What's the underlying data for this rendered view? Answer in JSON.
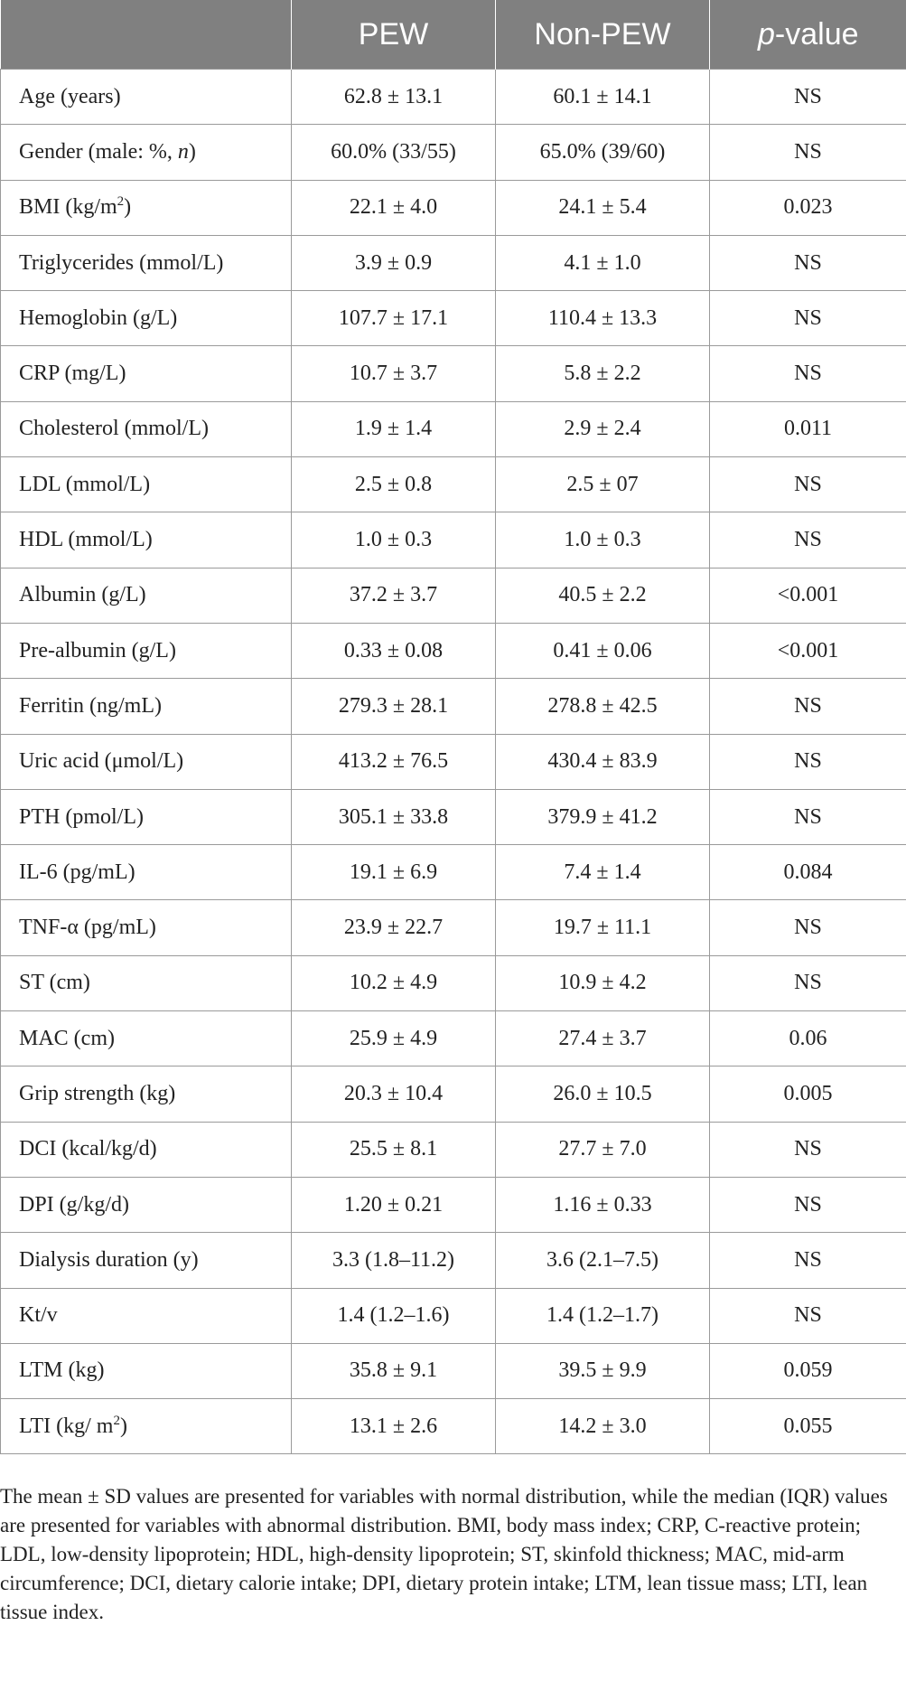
{
  "table": {
    "headers": [
      "",
      "PEW",
      "Non-PEW",
      "p",
      "-value"
    ],
    "rows": [
      {
        "label": "Age (years)",
        "pew": "62.8 ± 13.1",
        "nonpew": "60.1 ± 14.1",
        "p": "NS"
      },
      {
        "label": "Gender (male: %, ",
        "label_italic": "n",
        "label_end": ")",
        "pew": "60.0% (33/55)",
        "nonpew": "65.0% (39/60)",
        "p": "NS"
      },
      {
        "label": "BMI (kg/m",
        "label_sup": "2",
        "label_end": ")",
        "pew": "22.1 ± 4.0",
        "nonpew": "24.1 ± 5.4",
        "p": "0.023"
      },
      {
        "label": "Triglycerides (mmol/L)",
        "pew": "3.9 ± 0.9",
        "nonpew": "4.1 ± 1.0",
        "p": "NS"
      },
      {
        "label": "Hemoglobin (g/L)",
        "pew": "107.7 ± 17.1",
        "nonpew": "110.4 ± 13.3",
        "p": "NS"
      },
      {
        "label": "CRP (mg/L)",
        "pew": "10.7 ± 3.7",
        "nonpew": "5.8 ± 2.2",
        "p": "NS"
      },
      {
        "label": "Cholesterol (mmol/L)",
        "pew": "1.9 ± 1.4",
        "nonpew": "2.9 ± 2.4",
        "p": "0.011"
      },
      {
        "label": "LDL (mmol/L)",
        "pew": "2.5 ± 0.8",
        "nonpew": "2.5 ± 07",
        "p": "NS"
      },
      {
        "label": "HDL (mmol/L)",
        "pew": "1.0 ± 0.3",
        "nonpew": "1.0 ± 0.3",
        "p": "NS"
      },
      {
        "label": "Albumin (g/L)",
        "pew": "37.2 ± 3.7",
        "nonpew": "40.5 ± 2.2",
        "p": "<0.001"
      },
      {
        "label": "Pre-albumin (g/L)",
        "pew": "0.33 ± 0.08",
        "nonpew": "0.41 ± 0.06",
        "p": "<0.001"
      },
      {
        "label": "Ferritin (ng/mL)",
        "pew": "279.3 ± 28.1",
        "nonpew": "278.8 ± 42.5",
        "p": "NS"
      },
      {
        "label": "Uric acid (μmol/L)",
        "pew": "413.2 ± 76.5",
        "nonpew": "430.4 ± 83.9",
        "p": "NS"
      },
      {
        "label": "PTH (pmol/L)",
        "pew": "305.1 ± 33.8",
        "nonpew": "379.9 ± 41.2",
        "p": "NS"
      },
      {
        "label": "IL-6 (pg/mL)",
        "pew": "19.1 ± 6.9",
        "nonpew": "7.4 ± 1.4",
        "p": "0.084"
      },
      {
        "label": "TNF-α (pg/mL)",
        "pew": "23.9 ± 22.7",
        "nonpew": "19.7 ± 11.1",
        "p": "NS"
      },
      {
        "label": "ST (cm)",
        "pew": "10.2 ± 4.9",
        "nonpew": "10.9 ± 4.2",
        "p": "NS"
      },
      {
        "label": "MAC (cm)",
        "pew": "25.9 ± 4.9",
        "nonpew": "27.4 ± 3.7",
        "p": "0.06"
      },
      {
        "label": "Grip strength (kg)",
        "pew": "20.3 ± 10.4",
        "nonpew": "26.0 ± 10.5",
        "p": "0.005"
      },
      {
        "label": "DCI (kcal/kg/d)",
        "pew": "25.5 ± 8.1",
        "nonpew": "27.7 ± 7.0",
        "p": "NS"
      },
      {
        "label": "DPI (g/kg/d)",
        "pew": "1.20 ± 0.21",
        "nonpew": "1.16 ± 0.33",
        "p": "NS"
      },
      {
        "label": "Dialysis duration (y)",
        "pew": "3.3 (1.8–11.2)",
        "nonpew": "3.6 (2.1–7.5)",
        "p": "NS"
      },
      {
        "label": "Kt/v",
        "pew": "1.4 (1.2–1.6)",
        "nonpew": "1.4 (1.2–1.7)",
        "p": "NS"
      },
      {
        "label": "LTM (kg)",
        "pew": "35.8 ± 9.1",
        "nonpew": "39.5 ± 9.9",
        "p": "0.059"
      },
      {
        "label": "LTI (kg/ m",
        "label_sup": "2",
        "label_end": ")",
        "pew": "13.1 ± 2.6",
        "nonpew": "14.2 ± 3.0",
        "p": "0.055"
      }
    ]
  },
  "footnote": "The mean ± SD values are presented for variables with normal distribution, while the median (IQR) values are presented for variables with abnormal distribution. BMI, body mass index; CRP, C-reactive protein; LDL, low-density lipoprotein; HDL, high-density lipoprotein; ST, skinfold thickness; MAC, mid-arm circumference; DCI, dietary calorie intake; DPI, dietary protein intake; LTM, lean tissue mass; LTI, lean tissue index."
}
